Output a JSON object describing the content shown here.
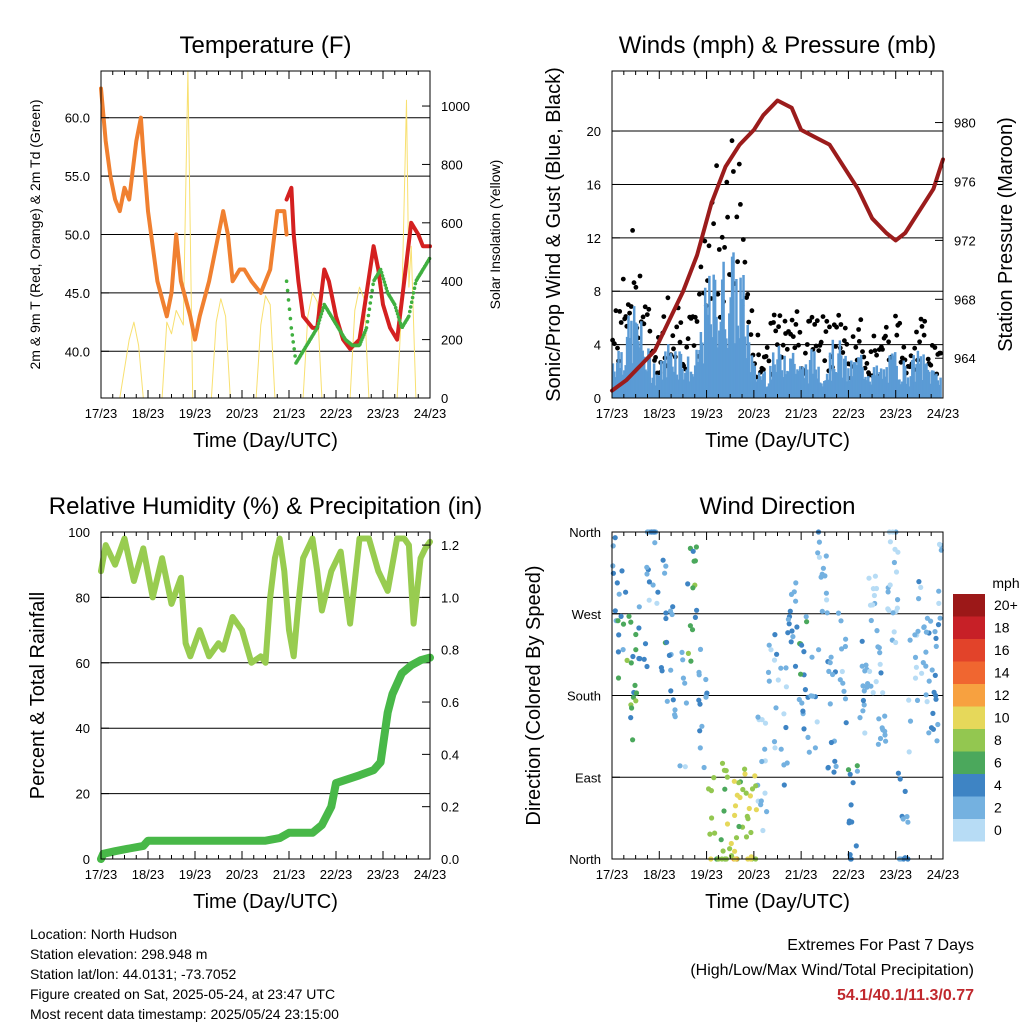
{
  "footer": {
    "location": "Location: North Hudson",
    "elevation": "Station elevation: 298.948 m",
    "latlon": "Station lat/lon: 44.0131; -73.7052",
    "created": "Figure created on Sat, 2025-05-24, at 23:47 UTC",
    "recent": "Most recent data timestamp: 2025/05/24 23:15:00",
    "extremes_title": "Extremes For Past 7 Days",
    "extremes_sub": "(High/Low/Max Wind/Total Precipitation)",
    "extremes_values": "54.1/40.1/11.3/0.77"
  },
  "colors": {
    "temp2m": "#d42020",
    "temp9m": "#f08030",
    "dewpoint": "#40b040",
    "solar": "#f8e070",
    "wind": "#5b9bd5",
    "gust": "#000000",
    "pressure": "#9b1c1c",
    "rh": "#98cc50",
    "precip": "#48b848",
    "extremes": "#c0282d"
  },
  "chart_data": [
    {
      "type": "line",
      "title": "Temperature (F)",
      "xlabel": "Time (Day/UTC)",
      "ylabel": "2m & 9m T (Red, Orange) & 2m Td (Green)",
      "y2label": "Solar Insolation (Yellow)",
      "xlim": [
        0,
        7
      ],
      "ylim": [
        36,
        64
      ],
      "y2lim": [
        0,
        1120
      ],
      "xticks": [
        "17/23",
        "18/23",
        "19/23",
        "20/23",
        "21/23",
        "22/23",
        "23/23",
        "24/23"
      ],
      "yticks": [
        "40.0",
        "45.0",
        "50.0",
        "55.0",
        "60.0"
      ],
      "y2ticks": [
        "0",
        "200",
        "400",
        "600",
        "800",
        "1000"
      ],
      "grid": true,
      "series": [
        {
          "key": "temp9m",
          "x": [
            0,
            0.1,
            0.2,
            0.3,
            0.4,
            0.5,
            0.6,
            0.75,
            0.85,
            0.9,
            1.0,
            1.2,
            1.4,
            1.5,
            1.6,
            1.7,
            1.9,
            2.0,
            2.1,
            2.3,
            2.5,
            2.6,
            2.7,
            2.8,
            2.95,
            3.05,
            3.2,
            3.4,
            3.6,
            3.75,
            3.9,
            3.95
          ],
          "y": [
            62.5,
            58,
            55,
            53,
            52,
            54,
            53,
            58,
            60,
            57,
            52,
            46,
            43,
            45,
            50,
            46,
            43,
            41,
            43,
            46,
            50,
            52,
            50,
            46,
            47,
            47,
            46,
            45,
            47,
            52,
            52,
            50
          ]
        },
        {
          "key": "temp2m",
          "x": [
            3.95,
            4.05,
            4.1,
            4.2,
            4.3,
            4.5,
            4.6,
            4.75,
            4.85,
            5.0,
            5.15,
            5.3,
            5.5,
            5.65,
            5.8,
            5.9,
            6.0,
            6.15,
            6.3,
            6.45,
            6.6,
            6.75,
            6.85,
            7.0
          ],
          "y": [
            53,
            54,
            50,
            46,
            43,
            42,
            42,
            47,
            46,
            43,
            41,
            40.2,
            41,
            45,
            49,
            47,
            44,
            42,
            41,
            46,
            51,
            50,
            49,
            49
          ]
        },
        {
          "key": "dewpoint",
          "x": [
            3.95,
            4.05,
            4.15,
            4.3,
            4.45,
            4.6,
            4.75,
            4.9,
            5.05,
            5.2,
            5.35,
            5.5,
            5.65,
            5.8,
            5.95,
            6.1,
            6.25,
            6.4,
            6.55,
            6.7,
            6.85,
            7.0
          ],
          "y": [
            46,
            42,
            39,
            40,
            41,
            42,
            44,
            43,
            42,
            41,
            40.5,
            40.5,
            42,
            46,
            47,
            45,
            44,
            42,
            43,
            46,
            47,
            48
          ]
        },
        {
          "key": "solar",
          "x": [
            0.4,
            0.6,
            0.7,
            0.8,
            0.9,
            1.1,
            1.3,
            1.4,
            1.5,
            1.6,
            1.75,
            1.85,
            1.95,
            2.35,
            2.45,
            2.55,
            2.65,
            2.75,
            3.3,
            3.4,
            3.5,
            3.6,
            3.7,
            4.3,
            4.4,
            4.5,
            4.6,
            4.7,
            5.3,
            5.4,
            5.5,
            5.6,
            5.7,
            6.3,
            6.4,
            6.5,
            6.55,
            6.6,
            6.7
          ],
          "y": [
            0,
            200,
            260,
            180,
            0,
            0,
            0,
            260,
            220,
            300,
            250,
            1120,
            0,
            0,
            260,
            340,
            280,
            0,
            0,
            250,
            350,
            320,
            0,
            0,
            280,
            360,
            330,
            0,
            0,
            300,
            380,
            340,
            0,
            0,
            320,
            1020,
            380,
            520,
            0
          ]
        }
      ]
    },
    {
      "type": "scatter",
      "title": "Winds (mph) & Pressure (mb)",
      "xlabel": "Time (Day/UTC)",
      "ylabel": "Sonic/Prop Wind & Gust (Blue, Black)",
      "y2label": "Station Pressure (Maroon)",
      "xlim": [
        0,
        7
      ],
      "ylim": [
        0,
        24.5
      ],
      "y2lim": [
        961.3,
        983.5
      ],
      "xticks": [
        "17/23",
        "18/23",
        "19/23",
        "20/23",
        "21/23",
        "22/23",
        "23/23",
        "24/23"
      ],
      "yticks": [
        "0",
        "4",
        "8",
        "12",
        "16",
        "20"
      ],
      "y2ticks": [
        "964",
        "968",
        "972",
        "976",
        "980"
      ],
      "grid": true,
      "series": [
        {
          "key": "wind",
          "x": [
            0,
            0.25,
            0.5,
            0.75,
            1.0,
            1.25,
            1.5,
            1.75,
            2.0,
            2.25,
            2.5,
            2.75,
            3.0,
            3.25,
            3.5,
            3.75,
            4.0,
            4.25,
            4.5,
            4.75,
            5.0,
            5.25,
            5.5,
            5.75,
            6.0,
            6.25,
            6.5,
            6.75,
            7.0
          ],
          "y": [
            3,
            4,
            6,
            3,
            2,
            4,
            3,
            2,
            7,
            8,
            9,
            8,
            2,
            2,
            3,
            4,
            2,
            3,
            2,
            4,
            2,
            3,
            2,
            2,
            3,
            2,
            3,
            2,
            2
          ]
        },
        {
          "key": "gust",
          "x": [
            0,
            0.25,
            0.5,
            0.75,
            1.0,
            1.25,
            1.5,
            1.75,
            2.0,
            2.25,
            2.5,
            2.75,
            3.0,
            3.25,
            3.5,
            3.75,
            4.0,
            4.25,
            4.5,
            4.75,
            5.0,
            5.25,
            5.5,
            5.75,
            6.0,
            6.25,
            6.5,
            6.75,
            7.0
          ],
          "y": [
            5,
            8,
            12,
            6,
            4,
            8,
            6,
            5,
            14,
            16,
            17,
            15,
            4,
            4,
            6,
            8,
            5,
            6,
            5,
            7,
            4,
            5,
            4,
            4,
            6,
            4,
            6,
            4,
            3
          ]
        },
        {
          "key": "pressure",
          "x": [
            0,
            0.3,
            0.6,
            0.9,
            1.2,
            1.5,
            1.8,
            2.1,
            2.4,
            2.7,
            3.0,
            3.2,
            3.5,
            3.8,
            4.0,
            4.3,
            4.6,
            4.9,
            5.2,
            5.5,
            5.8,
            6.0,
            6.2,
            6.4,
            6.6,
            6.8,
            7.0
          ],
          "y": [
            961.8,
            962.5,
            963.5,
            964.5,
            966.5,
            968.5,
            971,
            974.5,
            977,
            978.5,
            979.5,
            980.5,
            981.5,
            981,
            979.5,
            979,
            978.5,
            977,
            975.5,
            973.5,
            972.5,
            972,
            972.5,
            973.5,
            974.5,
            975.5,
            977.5
          ]
        }
      ]
    },
    {
      "type": "line",
      "title": "Relative Humidity (%) & Precipitation (in)",
      "xlabel": "Time (Day/UTC)",
      "ylabel": "Percent & Total Rainfall",
      "xlim": [
        0,
        7
      ],
      "ylim": [
        0,
        100
      ],
      "y2lim": [
        0,
        1.25
      ],
      "xticks": [
        "17/23",
        "18/23",
        "19/23",
        "20/23",
        "21/23",
        "22/23",
        "23/23",
        "24/23"
      ],
      "yticks": [
        "0",
        "20",
        "40",
        "60",
        "80",
        "100"
      ],
      "y2ticks": [
        "0.0",
        "0.2",
        "0.4",
        "0.6",
        "0.8",
        "1.0",
        "1.2"
      ],
      "grid": true,
      "series": [
        {
          "key": "rh",
          "x": [
            0,
            0.1,
            0.3,
            0.5,
            0.7,
            0.9,
            1.1,
            1.3,
            1.5,
            1.7,
            1.8,
            1.9,
            2.1,
            2.3,
            2.5,
            2.6,
            2.8,
            3.0,
            3.2,
            3.4,
            3.5,
            3.6,
            3.7,
            3.8,
            3.9,
            4.0,
            4.1,
            4.2,
            4.3,
            4.5,
            4.6,
            4.7,
            4.9,
            5.1,
            5.3,
            5.5,
            5.7,
            5.9,
            6.1,
            6.3,
            6.45,
            6.55,
            6.65,
            6.8,
            6.9,
            7.0
          ],
          "y": [
            88,
            96,
            90,
            98,
            85,
            95,
            80,
            92,
            78,
            86,
            66,
            62,
            70,
            62,
            66,
            64,
            74,
            70,
            60,
            62,
            60,
            80,
            92,
            98,
            88,
            70,
            62,
            78,
            92,
            98,
            88,
            76,
            88,
            94,
            72,
            98,
            98,
            88,
            82,
            98,
            98,
            96,
            72,
            92,
            95,
            97
          ]
        },
        {
          "key": "precip",
          "x": [
            0,
            0.05,
            0.3,
            0.6,
            0.9,
            1.0,
            1.4,
            2.0,
            2.5,
            3.0,
            3.5,
            3.8,
            4.0,
            4.3,
            4.5,
            4.7,
            4.9,
            5.0,
            5.5,
            5.8,
            5.95,
            6.1,
            6.2,
            6.4,
            6.6,
            6.8,
            7.0
          ],
          "y": [
            0.0,
            0.02,
            0.03,
            0.04,
            0.05,
            0.07,
            0.07,
            0.07,
            0.07,
            0.07,
            0.07,
            0.08,
            0.1,
            0.1,
            0.1,
            0.13,
            0.2,
            0.29,
            0.32,
            0.34,
            0.37,
            0.56,
            0.63,
            0.71,
            0.74,
            0.76,
            0.77
          ]
        }
      ]
    },
    {
      "type": "scatter",
      "title": "Wind Direction",
      "xlabel": "Time (Day/UTC)",
      "ylabel": "Direction (Colored By Speed)",
      "xlim": [
        0,
        7
      ],
      "ylim": [
        0,
        360
      ],
      "xticks": [
        "17/23",
        "18/23",
        "19/23",
        "20/23",
        "21/23",
        "22/23",
        "23/23",
        "24/23"
      ],
      "yticks": [
        "North",
        "East",
        "South",
        "West",
        "North"
      ],
      "grid": true,
      "colorbar": {
        "label": "mph",
        "levels": [
          "20+",
          "18",
          "16",
          "14",
          "12",
          "10",
          "8",
          "6",
          "4",
          "2",
          "0"
        ],
        "colors": [
          "#9c1818",
          "#c72027",
          "#e2432a",
          "#f06630",
          "#f7a140",
          "#e6d85a",
          "#93c750",
          "#4ba85c",
          "#3e84c4",
          "#74b1e0",
          "#b7dcf5"
        ]
      },
      "series": [
        {
          "name": "",
          "x": [
            0.1,
            0.3,
            0.5,
            0.6,
            0.8,
            1.0,
            1.2,
            1.4,
            1.6,
            1.8,
            2.0,
            2.2,
            2.4,
            2.6,
            2.8,
            3.2,
            3.4,
            3.6,
            3.8,
            4.0,
            4.2,
            4.4,
            4.6,
            4.8,
            5.0,
            5.2,
            5.4,
            5.6,
            5.8,
            6.0,
            6.2,
            6.4,
            6.6,
            6.8
          ],
          "y": [
            300,
            250,
            200,
            280,
            330,
            260,
            220,
            160,
            280,
            170,
            30,
            40,
            25,
            35,
            30,
            90,
            190,
            150,
            250,
            200,
            180,
            300,
            160,
            220,
            40,
            200,
            250,
            170,
            300,
            30,
            180,
            240,
            200,
            280
          ],
          "speed": [
            3,
            4,
            6,
            3,
            2,
            4,
            3,
            2,
            6,
            3,
            8,
            7,
            10,
            8,
            9,
            1,
            2,
            2,
            3,
            4,
            2,
            2,
            3,
            2,
            4,
            2,
            1,
            2,
            1,
            3,
            1,
            2,
            3,
            2
          ]
        }
      ]
    }
  ]
}
